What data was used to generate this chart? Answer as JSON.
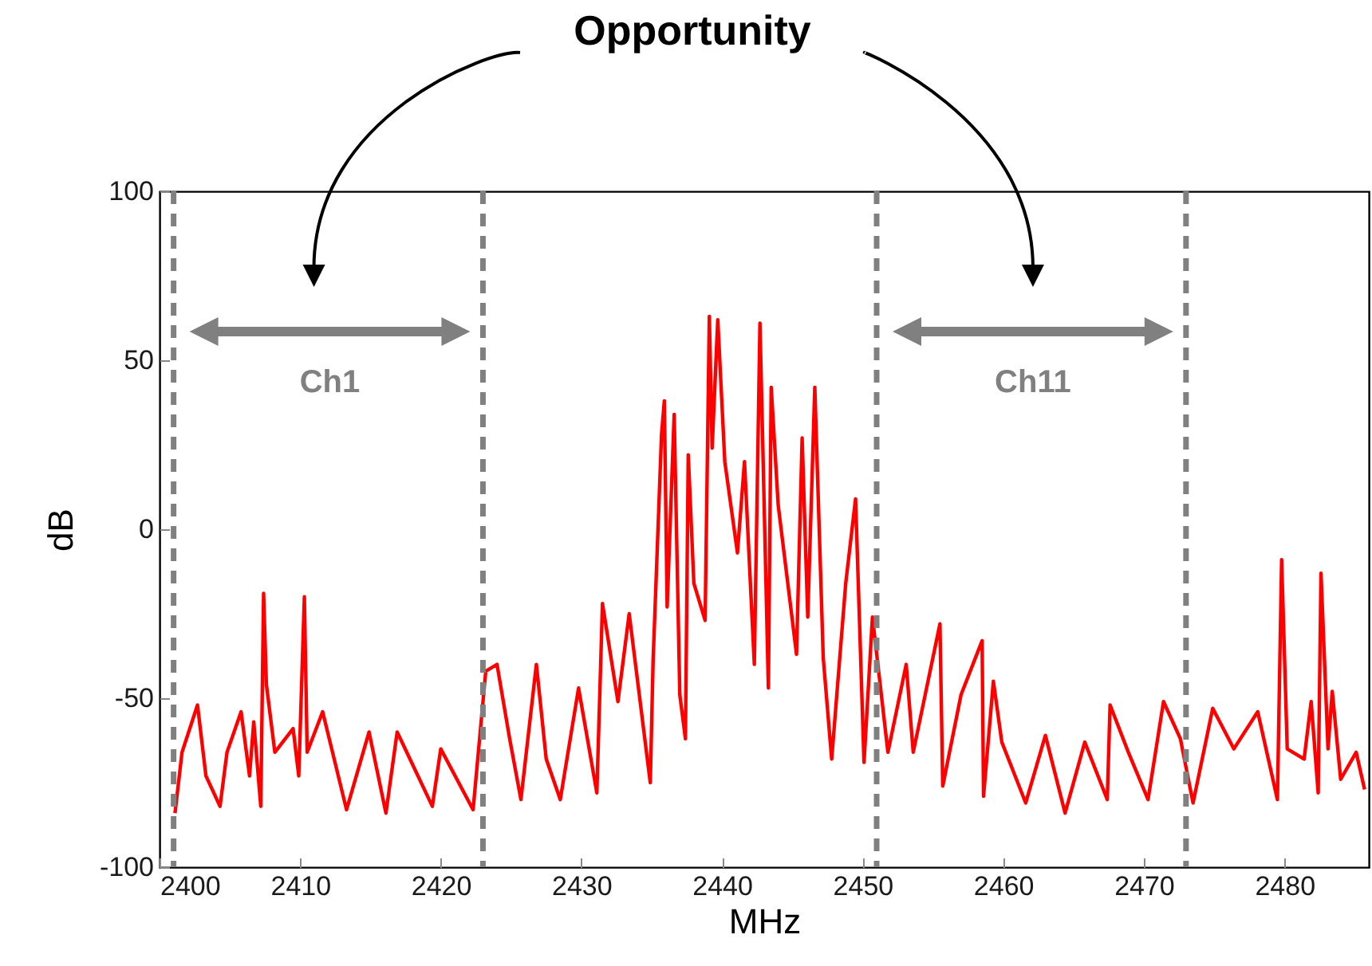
{
  "chart_data": {
    "type": "line",
    "title": "Opportunity",
    "xlabel": "MHz",
    "ylabel": "dB",
    "xlim": [
      2400,
      2486
    ],
    "xticks": [
      2400,
      2410,
      2420,
      2430,
      2440,
      2450,
      2460,
      2470,
      2480
    ],
    "ylim": [
      -100,
      100
    ],
    "yticks": [
      -100,
      -50,
      0,
      50,
      100
    ],
    "grid": false,
    "legend": false,
    "marker": "none",
    "line_style": "solid",
    "x": [
      2401.1,
      2401.6,
      2402.7,
      2403.3,
      2404.3,
      2404.8,
      2405.8,
      2406.4,
      2406.7,
      2407.2,
      2407.4,
      2407.6,
      2408.2,
      2409.5,
      2409.9,
      2410.3,
      2410.5,
      2411.6,
      2413.3,
      2414.9,
      2416.1,
      2416.9,
      2419.4,
      2420,
      2422.3,
      2423.2,
      2424,
      2424.9,
      2425.7,
      2426.8,
      2427.5,
      2428.5,
      2429.8,
      2431.1,
      2431.5,
      2432.6,
      2433.4,
      2434.9,
      2435.1,
      2435.7,
      2435.9,
      2436.1,
      2436.6,
      2437.0,
      2437.4,
      2437.6,
      2438.0,
      2438.8,
      2439.1,
      2439.3,
      2439.7,
      2440.2,
      2441.1,
      2441.6,
      2442.3,
      2442.7,
      2443.3,
      2443.5,
      2444.0,
      2445.3,
      2445.7,
      2446.1,
      2446.6,
      2447.2,
      2447.8,
      2448.8,
      2449.5,
      2450.1,
      2450.7,
      2451.8,
      2453.1,
      2453.6,
      2455.5,
      2455.7,
      2457.0,
      2458.5,
      2458.6,
      2459.3,
      2459.9,
      2461.6,
      2463.0,
      2464.4,
      2465.8,
      2467.4,
      2467.6,
      2468.9,
      2470.3,
      2471.4,
      2472.6,
      2473.5,
      2474.9,
      2476.4,
      2478.1,
      2479.5,
      2479.8,
      2480.2,
      2481.4,
      2481.9,
      2482.4,
      2482.6,
      2483.1,
      2483.4,
      2484.0,
      2485.1,
      2485.7
    ],
    "series": [
      {
        "color": "#ff0000",
        "values": [
          -84,
          -66,
          -52,
          -73,
          -82,
          -66,
          -54,
          -73,
          -57,
          -82,
          -19,
          -46,
          -66,
          -59,
          -73,
          -20,
          -66,
          -54,
          -83,
          -60,
          -84,
          -60,
          -82,
          -65,
          -83,
          -42,
          -40,
          -62,
          -80,
          -40,
          -68,
          -80,
          -47,
          -78,
          -22,
          -51,
          -25,
          -75,
          -39,
          28,
          38,
          -23,
          34,
          -49,
          -62,
          22,
          -16,
          -27,
          63,
          24,
          62,
          20,
          -7,
          20,
          -40,
          61,
          -47,
          42,
          7,
          -37,
          27,
          -26,
          42,
          -38,
          -68,
          -16,
          9,
          -69,
          -26,
          -66,
          -40,
          -66,
          -28,
          -76,
          -49,
          -33,
          -79,
          -45,
          -63,
          -81,
          -61,
          -84,
          -63,
          -80,
          -52,
          -66,
          -80,
          -51,
          -62,
          -81,
          -53,
          -65,
          -54,
          -80,
          -9,
          -65,
          -68,
          -51,
          -78,
          -13,
          -65,
          -48,
          -74,
          -66,
          -77
        ]
      }
    ],
    "ref_lines": [
      {
        "axis": "x",
        "value": 2401,
        "color": "#808080",
        "line_style": "dashed"
      },
      {
        "axis": "x",
        "value": 2423,
        "color": "#808080",
        "line_style": "dashed"
      },
      {
        "axis": "x",
        "value": 2451,
        "color": "#808080",
        "line_style": "dashed"
      },
      {
        "axis": "x",
        "value": 2473,
        "color": "#808080",
        "line_style": "dashed"
      }
    ],
    "annotations": [
      "Ch1",
      "Ch11"
    ]
  }
}
